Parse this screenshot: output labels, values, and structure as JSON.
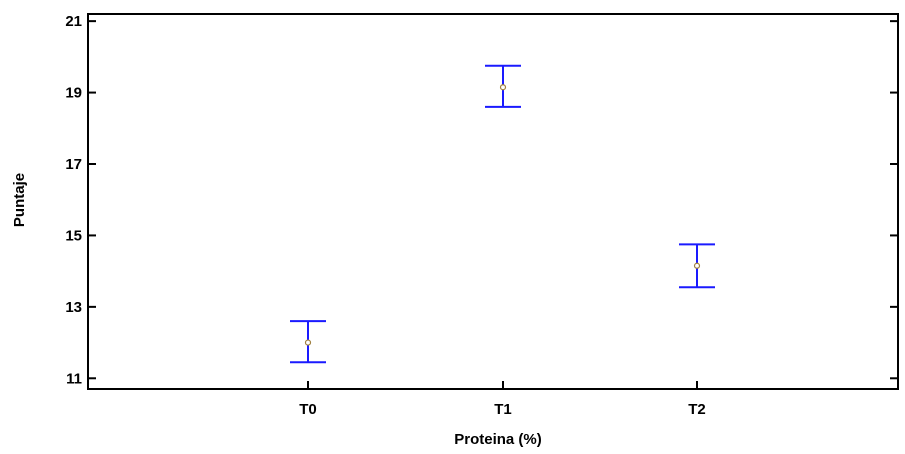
{
  "chart_data": {
    "type": "scatter",
    "title": "",
    "xlabel": "Proteina (%)",
    "ylabel": "Puntaje",
    "categories": [
      "T0",
      "T1",
      "T2"
    ],
    "means": [
      12.0,
      19.15,
      14.15
    ],
    "lower": [
      11.45,
      18.6,
      13.55
    ],
    "upper": [
      12.6,
      19.75,
      14.75
    ],
    "ylim": [
      10.7,
      21.2
    ],
    "yticks": [
      11,
      13,
      15,
      17,
      19,
      21
    ],
    "ytick_labels": [
      "11",
      "13",
      "15",
      "17",
      "19",
      "21"
    ],
    "grid": false,
    "legend": "none",
    "colors": {
      "interval": "#1a1aff",
      "mean_marker": "#a08040",
      "axes": "#000000"
    }
  }
}
